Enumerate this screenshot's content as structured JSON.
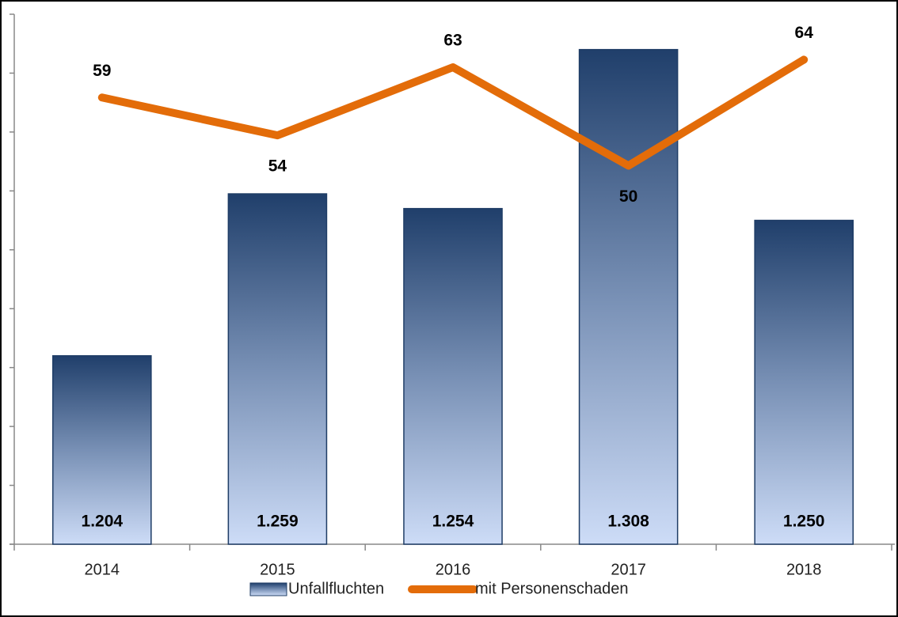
{
  "chart_data": {
    "type": "bar+line",
    "categories": [
      "2014",
      "2015",
      "2016",
      "2017",
      "2018"
    ],
    "series": [
      {
        "name": "Unfallfluchten",
        "type": "bar",
        "color": "#1f3d66",
        "values": [
          1204,
          1259,
          1254,
          1308,
          1250
        ],
        "value_labels": [
          "1.204",
          "1.259",
          "1.254",
          "1.308",
          "1.250"
        ]
      },
      {
        "name": "mit Personenschaden",
        "type": "line",
        "axis": "y2",
        "color": "#e36c09",
        "values": [
          59,
          54,
          63,
          50,
          64
        ]
      }
    ],
    "ylim": [
      1140,
      1320
    ],
    "yticks": [
      1140,
      1160,
      1180,
      1200,
      1220,
      1240,
      1260,
      1280,
      1300,
      1320
    ],
    "y2lim": [
      0,
      70
    ]
  }
}
